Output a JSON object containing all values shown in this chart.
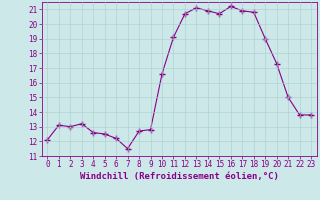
{
  "x": [
    0,
    1,
    2,
    3,
    4,
    5,
    6,
    7,
    8,
    9,
    10,
    11,
    12,
    13,
    14,
    15,
    16,
    17,
    18,
    19,
    20,
    21,
    22,
    23
  ],
  "y": [
    12.1,
    13.1,
    13.0,
    13.2,
    12.6,
    12.5,
    12.2,
    11.5,
    12.7,
    12.8,
    16.6,
    19.1,
    20.7,
    21.1,
    20.9,
    20.7,
    21.2,
    20.9,
    20.8,
    19.0,
    17.3,
    15.0,
    13.8,
    13.8
  ],
  "line_color": "#880088",
  "marker": "+",
  "marker_size": 4,
  "marker_lw": 1.0,
  "xlabel": "Windchill (Refroidissement éolien,°C)",
  "ylabel": "",
  "ylim": [
    11,
    21.5
  ],
  "xlim": [
    -0.5,
    23.5
  ],
  "yticks": [
    11,
    12,
    13,
    14,
    15,
    16,
    17,
    18,
    19,
    20,
    21
  ],
  "xticks": [
    0,
    1,
    2,
    3,
    4,
    5,
    6,
    7,
    8,
    9,
    10,
    11,
    12,
    13,
    14,
    15,
    16,
    17,
    18,
    19,
    20,
    21,
    22,
    23
  ],
  "bg_color": "#cce8e8",
  "grid_color": "#aacccc",
  "font_color": "#880088",
  "xlabel_fontsize": 6.5,
  "tick_fontsize": 5.5,
  "line_width": 0.8
}
